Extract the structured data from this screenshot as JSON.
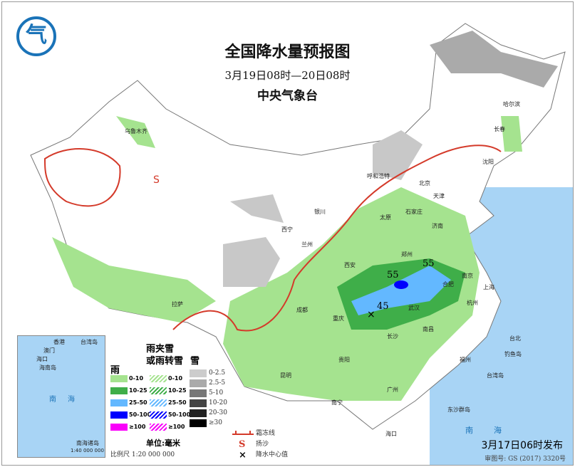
{
  "header": {
    "title": "全国降水量预报图",
    "period": "3月19日08时—20日08时",
    "agency": "中央气象台",
    "logo_text": "气"
  },
  "colors": {
    "rain_0_10": "#a5e38f",
    "rain_10_25": "#3fae49",
    "rain_25_50": "#63b8ff",
    "rain_50_100": "#0000fe",
    "rain_100": "#fa00fa",
    "ocean": "#a8d4f5",
    "frost_line": "#d43a2a",
    "snow_light": "#c8c8c8",
    "snow_dark": "#7a7a7a"
  },
  "values": [
    "55",
    "55",
    "45"
  ],
  "cities": [
    "乌鲁木齐",
    "哈尔滨",
    "长春",
    "沈阳",
    "呼和浩特",
    "北京",
    "天津",
    "石家庄",
    "太原",
    "济南",
    "银川",
    "西宁",
    "兰州",
    "西安",
    "郑州",
    "合肥",
    "南京",
    "上海",
    "武汉",
    "杭州",
    "长沙",
    "南昌",
    "福州",
    "重庆",
    "成都",
    "贵阳",
    "拉萨",
    "昆明",
    "南宁",
    "广州",
    "台北",
    "钓鱼岛",
    "台湾岛",
    "东沙群岛",
    "海口"
  ],
  "inset": {
    "labels": [
      "澳门",
      "香港",
      "台湾岛",
      "海口",
      "海南岛",
      "南",
      "海"
    ],
    "name": "南海诸岛",
    "scale": "1:40 000 000"
  },
  "legend": {
    "rain_header": "雨",
    "mix_header_1": "雨夹雪",
    "mix_header_2": "或雨转雪",
    "snow_header": "雪",
    "rain_levels": [
      "0-10",
      "10-25",
      "25-50",
      "50-100",
      "≥100"
    ],
    "mix_levels": [
      "0-10",
      "10-25",
      "25-50",
      "50-100",
      "≥100"
    ],
    "snow_levels": [
      "0-2.5",
      "2.5-5",
      "5-10",
      "10-20",
      "20-30",
      "≥30"
    ],
    "unit": "单位:毫米",
    "scale": "比例尺  1:20 000 000",
    "frost_line": "霜冻线",
    "sand": "扬沙",
    "center": "降水中心值",
    "sand_icon": "S",
    "center_icon": "×"
  },
  "footer": {
    "published": "3月17日06时发布",
    "review_no": "审图号: GS (2017) 3320号",
    "sea_label_1": "南",
    "sea_label_2": "海"
  }
}
